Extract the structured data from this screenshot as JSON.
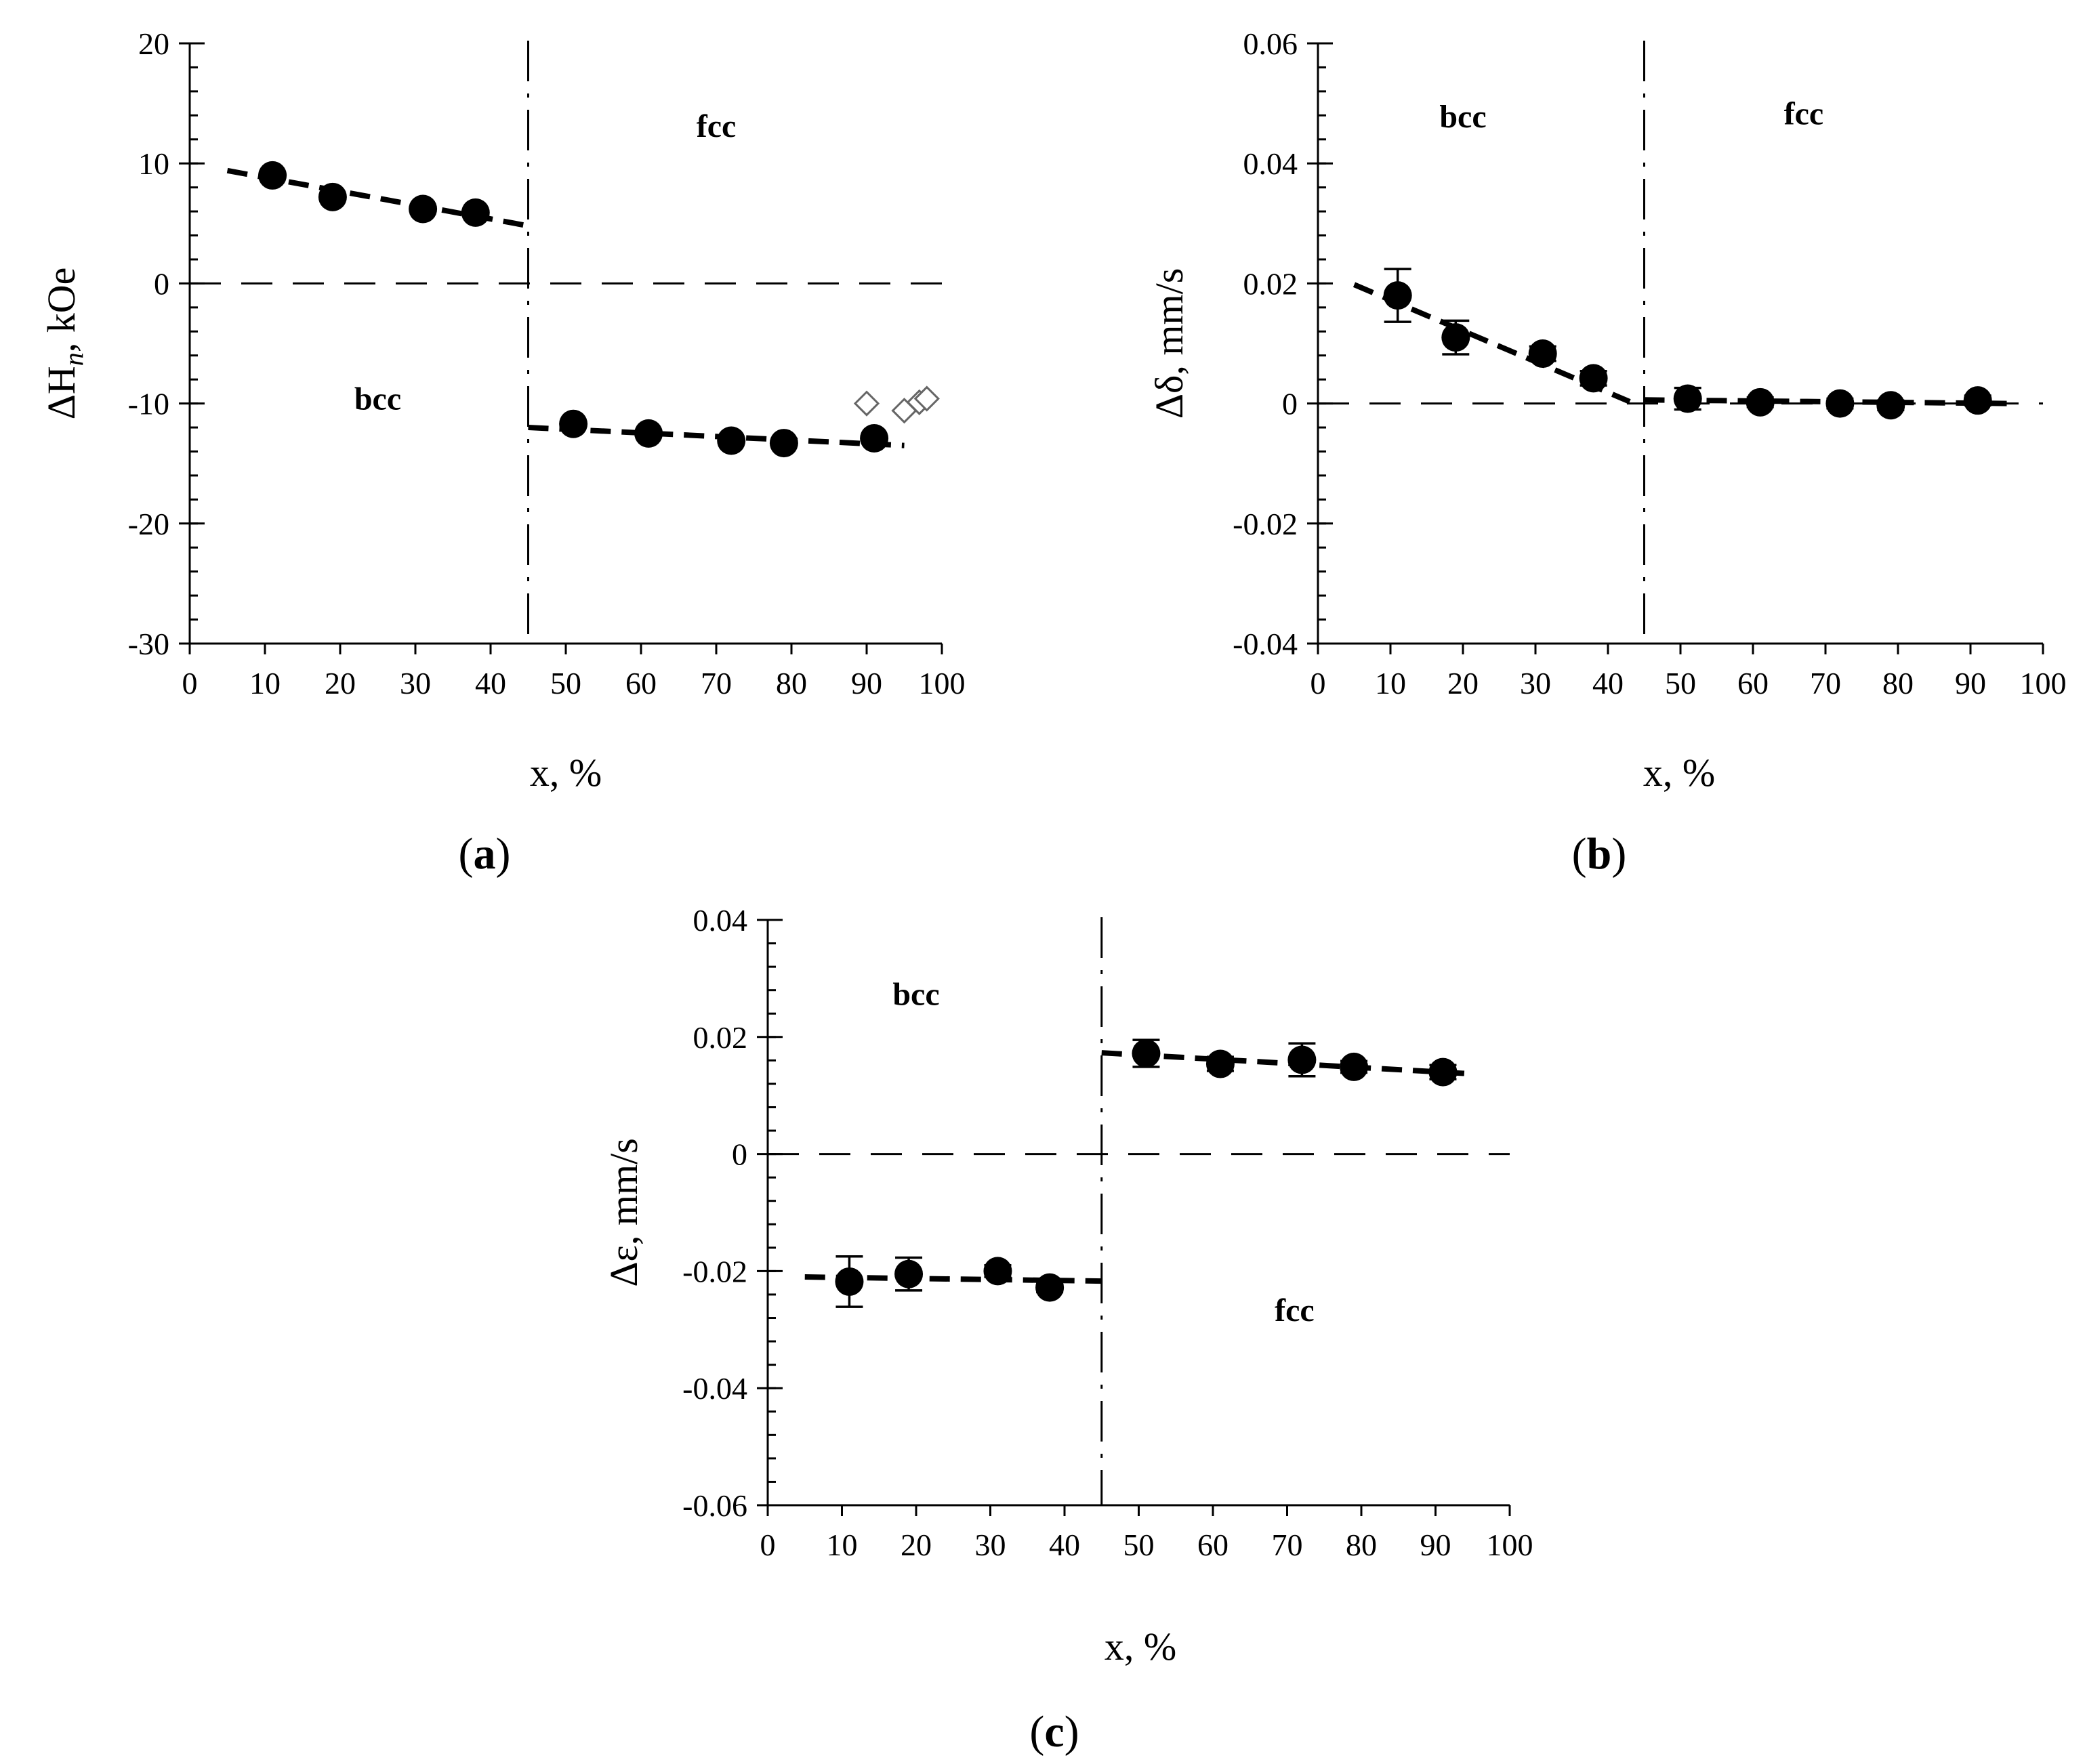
{
  "chart_data": [
    {
      "id": "a",
      "type": "scatter",
      "panel_label": "a",
      "xlabel": "x, %",
      "ylabel": {
        "prefix": "ΔH",
        "sub": "n",
        "suffix": ", kOe"
      },
      "xlim": [
        0,
        100
      ],
      "ylim": [
        -30,
        20
      ],
      "xticks": [
        0,
        10,
        20,
        30,
        40,
        50,
        60,
        70,
        80,
        90,
        100
      ],
      "yticks": [
        -30,
        -20,
        -10,
        0,
        10,
        20
      ],
      "ytick_labels": [
        "-30",
        "-20",
        "-10",
        "0",
        "10",
        "20"
      ],
      "y_minor_step": 2,
      "zero_line": 0,
      "phase_boundary_x": 45,
      "regions": [
        {
          "label": "fcc",
          "x": 70,
          "y": 12.2
        },
        {
          "label": "bcc",
          "x": 25,
          "y": -10.5
        }
      ],
      "series": [
        {
          "name": "bcc",
          "x": [
            11,
            19,
            31,
            38
          ],
          "y": [
            9.0,
            7.2,
            6.2,
            5.9
          ],
          "err": [
            0,
            0,
            0,
            0
          ],
          "fit": {
            "x": [
              5,
              45
            ],
            "y": [
              9.4,
              4.8
            ]
          }
        },
        {
          "name": "fcc",
          "x": [
            51,
            61,
            72,
            79,
            91
          ],
          "y": [
            -11.7,
            -12.5,
            -13.1,
            -13.3,
            -12.9
          ],
          "err": [
            0,
            0,
            0,
            0,
            0
          ],
          "fit": {
            "x": [
              45,
              95
            ],
            "y": [
              -12.0,
              -13.5
            ]
          }
        }
      ],
      "open_series": {
        "name": "open diamonds",
        "x": [
          90,
          95,
          97,
          98
        ],
        "y": [
          -10.0,
          -10.6,
          -9.9,
          -9.6
        ]
      }
    },
    {
      "id": "b",
      "type": "scatter",
      "panel_label": "b",
      "xlabel": "x, %",
      "ylabel": {
        "prefix": "Δδ, mm/s",
        "sub": "",
        "suffix": ""
      },
      "xlim": [
        0,
        100
      ],
      "ylim": [
        -0.04,
        0.06
      ],
      "xticks": [
        0,
        10,
        20,
        30,
        40,
        50,
        60,
        70,
        80,
        90,
        100
      ],
      "yticks": [
        -0.04,
        -0.02,
        0,
        0.02,
        0.04,
        0.06
      ],
      "ytick_labels": [
        "-0.04",
        "-0.02",
        "0",
        "0.02",
        "0.04",
        "0.06"
      ],
      "y_minor_step": 0.004,
      "zero_line": 0,
      "phase_boundary_x": 45,
      "regions": [
        {
          "label": "bcc",
          "x": 20,
          "y": 0.046
        },
        {
          "label": "fcc",
          "x": 67,
          "y": 0.0465
        }
      ],
      "series": [
        {
          "name": "bcc",
          "x": [
            11,
            19,
            31,
            38
          ],
          "y": [
            0.018,
            0.011,
            0.0083,
            0.0042
          ],
          "err": [
            0.0044,
            0.0028,
            0.0012,
            0.0012
          ],
          "fit": {
            "x": [
              5,
              43
            ],
            "y": [
              0.0198,
              0.0003
            ]
          }
        },
        {
          "name": "fcc",
          "x": [
            51,
            61,
            72,
            79,
            91
          ],
          "y": [
            0.0008,
            0.0002,
            0.0,
            -0.0003,
            0.0005
          ],
          "err": [
            0.0018,
            0.0008,
            0.0008,
            0.0008,
            0.0008
          ],
          "fit": {
            "x": [
              45,
              95
            ],
            "y": [
              0.0006,
              0.0
            ]
          }
        }
      ]
    },
    {
      "id": "c",
      "type": "scatter",
      "panel_label": "c",
      "xlabel": "x, %",
      "ylabel": {
        "prefix": "Δε, mm/s",
        "sub": "",
        "suffix": ""
      },
      "xlim": [
        0,
        100
      ],
      "ylim": [
        -0.06,
        0.04
      ],
      "xticks": [
        0,
        10,
        20,
        30,
        40,
        50,
        60,
        70,
        80,
        90,
        100
      ],
      "yticks": [
        -0.06,
        -0.04,
        -0.02,
        0,
        0.02,
        0.04
      ],
      "ytick_labels": [
        "-0.06",
        "-0.04",
        "-0.02",
        "0",
        "0.02",
        "0.04"
      ],
      "y_minor_step": 0.004,
      "zero_line": 0,
      "phase_boundary_x": 45,
      "regions": [
        {
          "label": "bcc",
          "x": 20,
          "y": 0.0255
        },
        {
          "label": "fcc",
          "x": 71,
          "y": -0.0285
        }
      ],
      "series": [
        {
          "name": "bcc",
          "x": [
            11,
            19,
            31,
            38
          ],
          "y": [
            -0.0218,
            -0.0205,
            -0.02,
            -0.0228
          ],
          "err": [
            0.0043,
            0.0028,
            0.001,
            0.0008
          ],
          "fit": {
            "x": [
              5,
              45
            ],
            "y": [
              -0.021,
              -0.0217
            ]
          }
        },
        {
          "name": "fcc",
          "x": [
            51,
            61,
            72,
            79,
            91
          ],
          "y": [
            0.0172,
            0.0154,
            0.0161,
            0.0149,
            0.014
          ],
          "err": [
            0.0023,
            0.0012,
            0.0028,
            0.001,
            0.0012
          ],
          "fit": {
            "x": [
              45,
              95
            ],
            "y": [
              0.0173,
              0.0137
            ]
          }
        }
      ]
    }
  ]
}
